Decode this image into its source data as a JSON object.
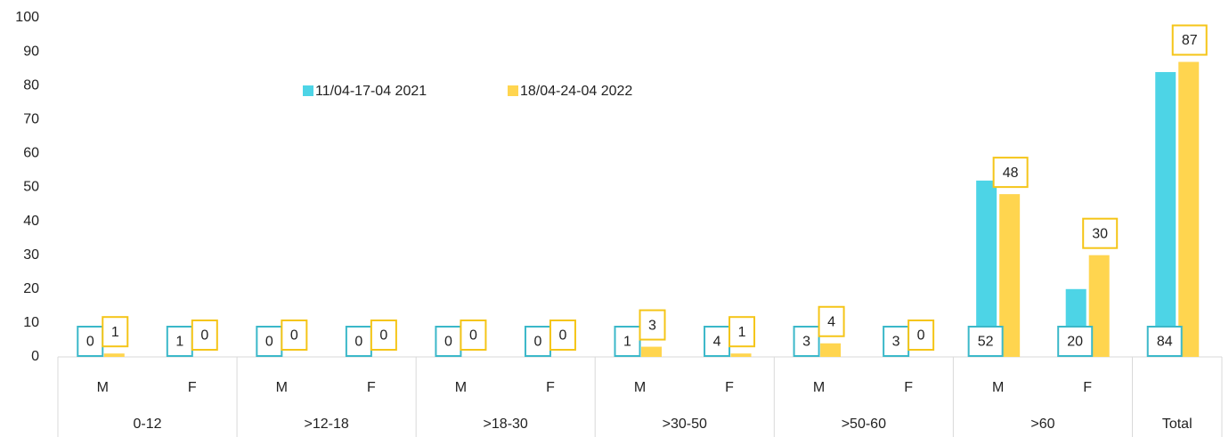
{
  "chart_data": {
    "type": "bar",
    "groups": [
      {
        "label": "0-12",
        "categories": [
          "M",
          "F"
        ]
      },
      {
        "label": ">12-18",
        "categories": [
          "M",
          "F"
        ]
      },
      {
        "label": ">18-30",
        "categories": [
          "M",
          "F"
        ]
      },
      {
        "label": ">30-50",
        "categories": [
          "M",
          "F"
        ]
      },
      {
        "label": ">50-60",
        "categories": [
          "M",
          "F"
        ]
      },
      {
        "label": ">60",
        "categories": [
          "M",
          "F"
        ]
      },
      {
        "label": "Total",
        "categories": [
          null
        ]
      }
    ],
    "series": [
      {
        "name": "11/04-17-04 2021",
        "color": "#4dd4e6",
        "values": [
          0,
          1,
          0,
          0,
          0,
          0,
          1,
          4,
          3,
          3,
          52,
          20,
          84
        ]
      },
      {
        "name": "18/04-24-04 2022",
        "color": "#ffd54f",
        "values": [
          1,
          0,
          0,
          0,
          0,
          0,
          3,
          1,
          4,
          0,
          48,
          30,
          87
        ]
      }
    ],
    "ylim": [
      0,
      100
    ],
    "yticks": [
      0,
      10,
      20,
      30,
      40,
      50,
      60,
      70,
      80,
      90,
      100
    ],
    "grid": false
  }
}
